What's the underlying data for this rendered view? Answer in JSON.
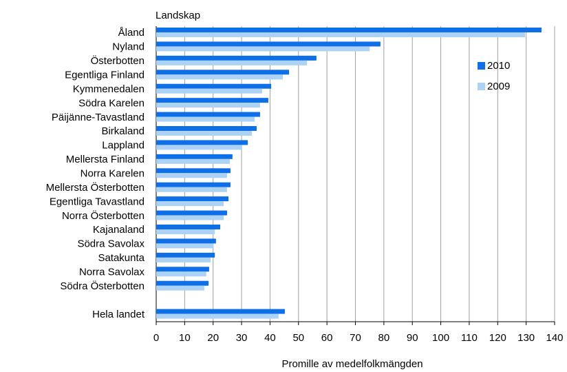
{
  "chart_data": {
    "type": "barh",
    "title": "Landskap",
    "x_label": "Promille av medelfolkmängden",
    "categories": [
      "Åland",
      "Nyland",
      "Österbotten",
      "Egentliga Finland",
      "Kymmenedalen",
      "Södra Karelen",
      "Päijänne-Tavastland",
      "Birkaland",
      "Lappland",
      "Mellersta Finland",
      "Norra Karelen",
      "Mellersta Österbotten",
      "Egentliga Tavastland",
      "Norra Österbotten",
      "Kajanaland",
      "Södra Savolax",
      "Satakunta",
      "Norra Savolax",
      "Södra Österbotten",
      null,
      "Hela landet"
    ],
    "series": [
      {
        "name": "2010",
        "color": "#0f6fe6",
        "values": [
          135.4,
          78.8,
          56.3,
          46.7,
          40.4,
          39.4,
          36.5,
          35.3,
          32.2,
          26.8,
          26.1,
          26.1,
          25.4,
          24.9,
          22.5,
          21,
          20.6,
          18.6,
          18.4,
          null,
          45.2
        ]
      },
      {
        "name": "2009",
        "color": "#acd3f6",
        "values": [
          129.6,
          75,
          53,
          44.5,
          37.2,
          36.5,
          34.6,
          33.6,
          30.2,
          25.9,
          24.9,
          24.9,
          23.7,
          23.7,
          20.6,
          20.1,
          19.1,
          17.6,
          16.9,
          null,
          43
        ]
      }
    ],
    "xlim": [
      0,
      140
    ],
    "xticks": [
      0,
      10,
      20,
      30,
      40,
      50,
      60,
      70,
      80,
      90,
      100,
      110,
      120,
      130,
      140
    ],
    "grid": true,
    "legend": "upper right"
  }
}
